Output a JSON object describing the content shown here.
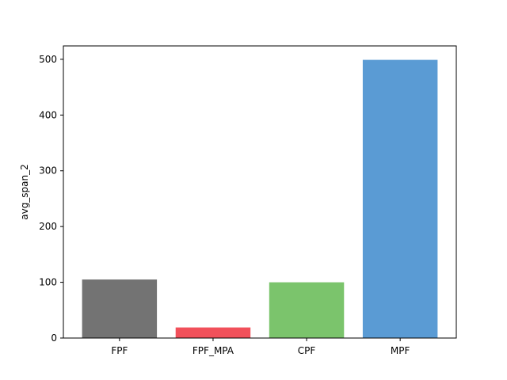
{
  "chart_data": {
    "type": "bar",
    "title": "",
    "xlabel": "",
    "ylabel": "avg_span_2",
    "categories": [
      "FPF",
      "FPF_MPA",
      "CPF",
      "MPF"
    ],
    "values": [
      105,
      19,
      100,
      499
    ],
    "colors": [
      "#737373",
      "#f1505a",
      "#7bc46c",
      "#5a9bd4"
    ],
    "ylim": [
      0,
      524
    ],
    "yticks": [
      0,
      100,
      200,
      300,
      400,
      500
    ],
    "grid": false,
    "legend": "none"
  }
}
